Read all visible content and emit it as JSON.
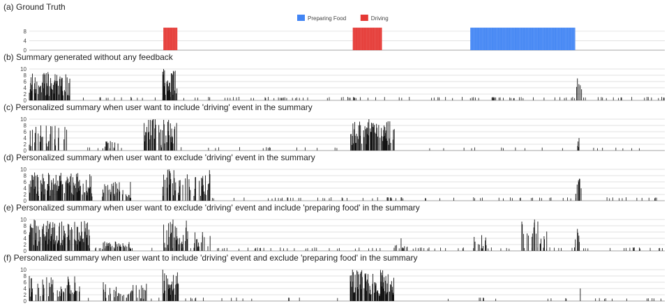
{
  "colors": {
    "preparing_food": "#4285f4",
    "driving": "#e53935",
    "bars": "#111111",
    "grid": "#d9d9d9"
  },
  "legend": [
    "Preparing Food",
    "Driving"
  ],
  "chart_data": [
    {
      "type": "bar",
      "title": "(a)  Ground Truth",
      "ylim": [
        0,
        10
      ],
      "yticks": [
        "8",
        "4",
        "0"
      ],
      "x_range": [
        0,
        1000
      ],
      "series": [
        {
          "name": "Driving",
          "segments": [
            [
              211,
              233
            ],
            [
              509,
              555
            ]
          ],
          "value": 9.5
        },
        {
          "name": "Preparing Food",
          "segments": [
            [
              694,
              859
            ]
          ],
          "value": 9.5
        }
      ]
    },
    {
      "type": "bar",
      "title": "(b)  Summary generated without any feedback",
      "ylim": [
        0,
        10
      ],
      "yticks": [
        "10",
        "8",
        "6",
        "4",
        "2",
        "0"
      ],
      "x_range": [
        0,
        1000
      ],
      "clusters": [
        {
          "range": [
            0,
            65
          ],
          "density": 0.75,
          "peak": 9
        },
        {
          "range": [
            210,
            233
          ],
          "density": 0.8,
          "peak": 10
        },
        {
          "range": [
            855,
            870
          ],
          "density": 0.25,
          "peak": 7
        }
      ],
      "low_bars": [
        {
          "range": [
            65,
            1000
          ],
          "density": 0.12,
          "value": 1
        }
      ]
    },
    {
      "type": "bar",
      "title": "(c)  Personalized summary when user want to include 'driving' event in the summary",
      "ylim": [
        0,
        10
      ],
      "yticks": [
        "10",
        "8",
        "6",
        "4",
        "2",
        "0"
      ],
      "x_range": [
        0,
        1000
      ],
      "clusters": [
        {
          "range": [
            0,
            60
          ],
          "density": 0.35,
          "peak": 8
        },
        {
          "range": [
            115,
            140
          ],
          "density": 0.3,
          "peak": 3
        },
        {
          "range": [
            180,
            233
          ],
          "density": 0.6,
          "peak": 10
        },
        {
          "range": [
            505,
            575
          ],
          "density": 0.7,
          "peak": 10
        },
        {
          "range": [
            860,
            870
          ],
          "density": 0.2,
          "peak": 4
        }
      ],
      "low_bars": [
        {
          "range": [
            60,
            505
          ],
          "density": 0.04,
          "value": 1
        },
        {
          "range": [
            630,
            1000
          ],
          "density": 0.06,
          "value": 1
        }
      ]
    },
    {
      "type": "bar",
      "title": "(d)  Personalized summary when user want to exclude 'driving' event in the summary",
      "ylim": [
        0,
        10
      ],
      "yticks": [
        "10",
        "8",
        "6",
        "4",
        "2",
        "0"
      ],
      "x_range": [
        0,
        1000
      ],
      "clusters": [
        {
          "range": [
            0,
            100
          ],
          "density": 0.7,
          "peak": 9
        },
        {
          "range": [
            115,
            160
          ],
          "density": 0.45,
          "peak": 6
        },
        {
          "range": [
            210,
            285
          ],
          "density": 0.45,
          "peak": 10
        },
        {
          "range": [
            855,
            870
          ],
          "density": 0.25,
          "peak": 7
        }
      ],
      "low_bars": [
        {
          "range": [
            285,
            1000
          ],
          "density": 0.1,
          "value": 1
        }
      ]
    },
    {
      "type": "bar",
      "title": "(e)  Personalized summary when user want to exclude 'driving' event and include 'preparing food' in the summary",
      "ylim": [
        0,
        10
      ],
      "yticks": [
        "10",
        "8",
        "6",
        "4",
        "2",
        "0"
      ],
      "x_range": [
        0,
        1000
      ],
      "clusters": [
        {
          "range": [
            0,
            95
          ],
          "density": 0.75,
          "peak": 10
        },
        {
          "range": [
            115,
            160
          ],
          "density": 0.4,
          "peak": 3
        },
        {
          "range": [
            210,
            250
          ],
          "density": 0.45,
          "peak": 10
        },
        {
          "range": [
            260,
            285
          ],
          "density": 0.25,
          "peak": 6
        },
        {
          "range": [
            575,
            595
          ],
          "density": 0.3,
          "peak": 4
        },
        {
          "range": [
            700,
            720
          ],
          "density": 0.3,
          "peak": 5
        },
        {
          "range": [
            775,
            815
          ],
          "density": 0.35,
          "peak": 10
        },
        {
          "range": [
            855,
            870
          ],
          "density": 0.3,
          "peak": 7
        }
      ],
      "low_bars": [
        {
          "range": [
            95,
            1000
          ],
          "density": 0.1,
          "value": 1
        }
      ]
    },
    {
      "type": "bar",
      "title": "(f)  Personalized summary when user want to include 'driving' event and exclude 'preparing food' in the summary",
      "ylim": [
        0,
        10
      ],
      "yticks": [
        "10",
        "8",
        "6",
        "4",
        "2",
        "0"
      ],
      "x_range": [
        0,
        1000
      ],
      "clusters": [
        {
          "range": [
            0,
            80
          ],
          "density": 0.45,
          "peak": 8
        },
        {
          "range": [
            115,
            185
          ],
          "density": 0.35,
          "peak": 6
        },
        {
          "range": [
            210,
            235
          ],
          "density": 0.75,
          "peak": 10
        },
        {
          "range": [
            505,
            575
          ],
          "density": 0.75,
          "peak": 10
        },
        {
          "range": [
            860,
            870
          ],
          "density": 0.2,
          "peak": 4
        }
      ],
      "low_bars": [
        {
          "range": [
            80,
            505
          ],
          "density": 0.04,
          "value": 1
        },
        {
          "range": [
            630,
            1000
          ],
          "density": 0.06,
          "value": 1
        }
      ]
    }
  ]
}
